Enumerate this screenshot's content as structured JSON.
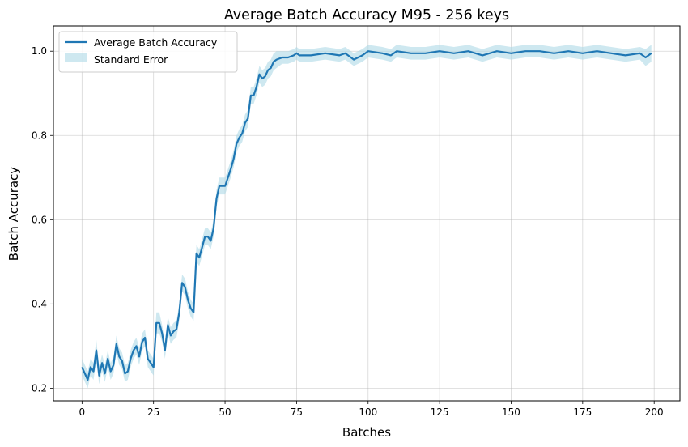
{
  "chart_data": {
    "type": "line",
    "title": "Average Batch Accuracy M95 - 256 keys",
    "xlabel": "Batches",
    "ylabel": "Batch Accuracy",
    "xlim": [
      -10,
      209
    ],
    "ylim": [
      0.17,
      1.06
    ],
    "xticks": [
      0,
      25,
      50,
      75,
      100,
      125,
      150,
      175,
      200
    ],
    "yticks": [
      0.2,
      0.4,
      0.6,
      0.8,
      1.0
    ],
    "xtick_labels": [
      "0",
      "25",
      "50",
      "75",
      "100",
      "125",
      "150",
      "175",
      "200"
    ],
    "ytick_labels": [
      "0.2",
      "0.4",
      "0.6",
      "0.8",
      "1.0"
    ],
    "grid": true,
    "legend_position": "top-left",
    "legend": [
      "Average Batch Accuracy",
      "Standard Error"
    ],
    "colors": {
      "line": "#1f77b4",
      "band": "#add8e6"
    },
    "series": [
      {
        "name": "Average Batch Accuracy",
        "x": [
          0,
          2,
          3,
          4,
          5,
          6,
          7,
          8,
          9,
          10,
          11,
          12,
          13,
          14,
          15,
          16,
          17,
          18,
          19,
          20,
          21,
          22,
          23,
          24,
          25,
          26,
          27,
          28,
          29,
          30,
          31,
          32,
          33,
          34,
          35,
          36,
          37,
          38,
          39,
          40,
          41,
          42,
          43,
          44,
          45,
          46,
          47,
          48,
          49,
          50,
          51,
          52,
          53,
          54,
          55,
          56,
          57,
          58,
          59,
          60,
          61,
          62,
          63,
          64,
          65,
          66,
          67,
          68,
          70,
          72,
          74,
          75,
          76,
          78,
          80,
          85,
          90,
          92,
          95,
          98,
          100,
          105,
          108,
          110,
          115,
          120,
          125,
          130,
          135,
          140,
          145,
          150,
          155,
          160,
          165,
          170,
          175,
          180,
          185,
          190,
          195,
          197,
          199
        ],
        "y": [
          0.25,
          0.22,
          0.25,
          0.24,
          0.29,
          0.23,
          0.26,
          0.235,
          0.27,
          0.24,
          0.255,
          0.305,
          0.275,
          0.265,
          0.235,
          0.24,
          0.27,
          0.29,
          0.3,
          0.275,
          0.31,
          0.32,
          0.27,
          0.26,
          0.25,
          0.355,
          0.355,
          0.33,
          0.29,
          0.35,
          0.325,
          0.335,
          0.34,
          0.38,
          0.45,
          0.44,
          0.41,
          0.39,
          0.38,
          0.52,
          0.51,
          0.535,
          0.56,
          0.56,
          0.55,
          0.58,
          0.65,
          0.68,
          0.68,
          0.68,
          0.7,
          0.72,
          0.745,
          0.78,
          0.795,
          0.805,
          0.83,
          0.84,
          0.895,
          0.895,
          0.915,
          0.945,
          0.935,
          0.94,
          0.955,
          0.96,
          0.975,
          0.98,
          0.985,
          0.985,
          0.99,
          0.995,
          0.99,
          0.99,
          0.99,
          0.995,
          0.99,
          0.995,
          0.98,
          0.99,
          1.0,
          0.995,
          0.99,
          1.0,
          0.995,
          0.995,
          1.0,
          0.995,
          1.0,
          0.99,
          1.0,
          0.995,
          1.0,
          1.0,
          0.995,
          1.0,
          0.995,
          1.0,
          0.995,
          0.99,
          0.995,
          0.985,
          0.995
        ]
      },
      {
        "name": "Standard Error",
        "x": [
          0,
          2,
          3,
          4,
          5,
          6,
          7,
          8,
          9,
          10,
          11,
          12,
          13,
          14,
          15,
          16,
          17,
          18,
          19,
          20,
          21,
          22,
          23,
          24,
          25,
          26,
          27,
          28,
          29,
          30,
          31,
          32,
          33,
          34,
          35,
          36,
          37,
          38,
          39,
          40,
          41,
          42,
          43,
          44,
          45,
          46,
          47,
          48,
          49,
          50,
          51,
          52,
          53,
          54,
          55,
          56,
          57,
          58,
          59,
          60,
          61,
          62,
          63,
          64,
          65,
          66,
          67,
          68,
          70,
          72,
          74,
          75,
          76,
          78,
          80,
          85,
          90,
          92,
          95,
          98,
          100,
          105,
          108,
          110,
          115,
          120,
          125,
          130,
          135,
          140,
          145,
          150,
          155,
          160,
          165,
          170,
          175,
          180,
          185,
          190,
          195,
          197,
          199
        ],
        "error": [
          0.02,
          0.02,
          0.02,
          0.02,
          0.025,
          0.02,
          0.02,
          0.02,
          0.02,
          0.02,
          0.02,
          0.02,
          0.02,
          0.02,
          0.02,
          0.02,
          0.02,
          0.02,
          0.02,
          0.02,
          0.02,
          0.02,
          0.02,
          0.02,
          0.02,
          0.025,
          0.025,
          0.02,
          0.02,
          0.02,
          0.02,
          0.02,
          0.02,
          0.02,
          0.02,
          0.02,
          0.02,
          0.02,
          0.02,
          0.02,
          0.02,
          0.02,
          0.02,
          0.02,
          0.02,
          0.02,
          0.02,
          0.02,
          0.02,
          0.02,
          0.02,
          0.02,
          0.02,
          0.02,
          0.02,
          0.02,
          0.02,
          0.02,
          0.02,
          0.02,
          0.02,
          0.02,
          0.02,
          0.02,
          0.02,
          0.02,
          0.02,
          0.02,
          0.015,
          0.015,
          0.015,
          0.015,
          0.015,
          0.015,
          0.015,
          0.015,
          0.015,
          0.015,
          0.015,
          0.015,
          0.015,
          0.015,
          0.015,
          0.015,
          0.015,
          0.015,
          0.015,
          0.015,
          0.015,
          0.015,
          0.015,
          0.015,
          0.015,
          0.015,
          0.015,
          0.015,
          0.015,
          0.015,
          0.015,
          0.015,
          0.015,
          0.02,
          0.02
        ]
      }
    ]
  }
}
